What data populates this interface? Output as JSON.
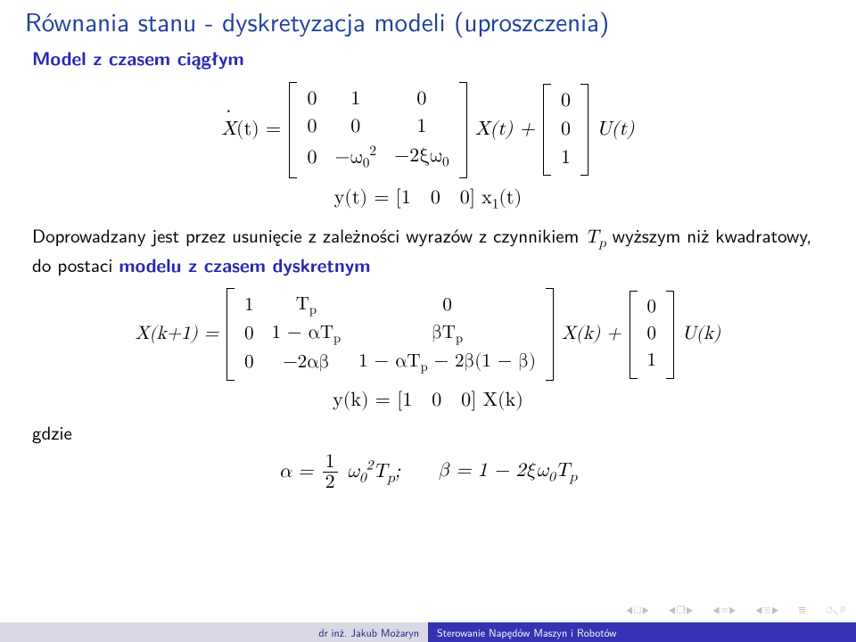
{
  "colors": {
    "title": "#20409a",
    "struct": "#2727b4",
    "footer_author_bg": "#d9d9e6",
    "footer_author_fg": "#20207a",
    "footer_title_bg": "#3333b3",
    "footer_title_fg": "#ffffff",
    "nav_gray": "#bfbfbf",
    "nav_accent": "#b36f6f"
  },
  "title": "Równania stanu - dyskretyzacja modeli (uproszczenia)",
  "heading1": "Model z czasem ciągłym",
  "eq1": {
    "lhs_var": "X",
    "lhs_arg": "(t) =",
    "A": [
      [
        "0",
        "1",
        "0"
      ],
      [
        "0",
        "0",
        "1"
      ],
      [
        "0",
        "−ω",
        "−2ξω",
        "0"
      ]
    ],
    "A_row3": [
      "0",
      "−ω<span class='ssub'>0</span><span class='ssup'>2</span>",
      "−2ξω<span class='ssub'>0</span>"
    ],
    "mid": " X(t) + ",
    "B": [
      "0",
      "0",
      "1"
    ],
    "tail": " U(t)"
  },
  "eq2": "y(t) = [1&nbsp;&nbsp;&nbsp;0&nbsp;&nbsp;&nbsp;0] x<span class='ssub'>1</span>(t)",
  "para1_a": "Doprowadzany jest przez usunięcie z zależności wyrazów z czynnikiem ",
  "para1_b": " wyższym niż kwadratowy, do postaci ",
  "para1_c": "modelu z czasem dyskretnym",
  "para1_tp": "T<span class='ssub'>p</span>",
  "eq3": {
    "lhs": "X(k+1) =",
    "A": [
      [
        "1",
        "T<span class='ssub'>p</span>",
        "0"
      ],
      [
        "0",
        "1 − αT<span class='ssub'>p</span>",
        "βT<span class='ssub'>p</span>"
      ],
      [
        "0",
        "−2αβ",
        "1 − αT<span class='ssub'>p</span> − 2β(1 − β)"
      ]
    ],
    "mid": " X(k) + ",
    "B": [
      "0",
      "0",
      "1"
    ],
    "tail": " U(k)"
  },
  "eq4": "y(k) = [1&nbsp;&nbsp;&nbsp;0&nbsp;&nbsp;&nbsp;0] X(k)",
  "gdzie": "gdzie",
  "eq5_a": "α = ",
  "eq5_frac_n": "1",
  "eq5_frac_d": "2",
  "eq5_b": "ω<span class='ssub'>0</span><span class='ssup'>2</span>T<span class='ssub'>p</span>;",
  "eq5_c": "β = 1 − 2ξω<span class='ssub'>0</span>T<span class='ssub'>p</span>",
  "footer": {
    "author": "dr inż. Jakub Możaryn",
    "title": "Sterowanie Napędów Maszyn i Robotów"
  },
  "fontsize": {
    "title": 29,
    "body": 21,
    "eq": 22,
    "footer": 12
  }
}
